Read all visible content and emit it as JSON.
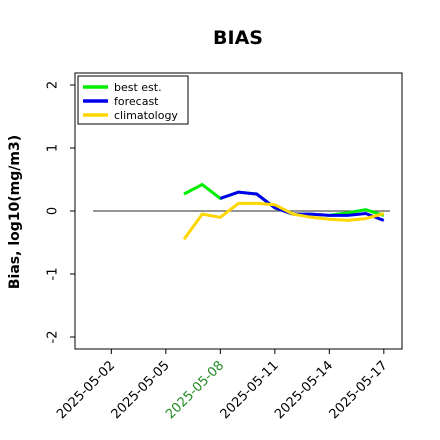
{
  "chart_data": {
    "type": "line",
    "title": "BIAS",
    "xlabel": "",
    "ylabel": "Bias, log10(mg/m3)",
    "xlim": [
      "2025-04-30",
      "2025-05-18"
    ],
    "ylim": [
      -2,
      2
    ],
    "yticks": [
      2,
      1,
      0,
      -1,
      -2
    ],
    "ytick_labels": [
      "2",
      "1",
      "0",
      "-1",
      "-2"
    ],
    "xticks": [
      "2025-05-02",
      "2025-05-05",
      "2025-05-08",
      "2025-05-11",
      "2025-05-14",
      "2025-05-17"
    ],
    "xtick_labels": [
      "2025-05-02",
      "2025-05-05",
      "2025-05-08",
      "2025-05-11",
      "2025-05-14",
      "2025-05-17"
    ],
    "highlighted_xtick": "2025-05-08",
    "highlight_color": "#228B22",
    "zero_line": 0,
    "grid": false,
    "legend_position": "top-left",
    "series": [
      {
        "name": "best est.",
        "color": "#00EE00",
        "x": [
          "2025-05-06",
          "2025-05-07",
          "2025-05-08",
          "2025-05-09",
          "2025-05-10",
          "2025-05-11",
          "2025-05-12",
          "2025-05-13",
          "2025-05-14",
          "2025-05-15",
          "2025-05-16",
          "2025-05-17"
        ],
        "y": [
          0.27,
          0.42,
          0.2,
          0.3,
          0.27,
          0.05,
          -0.05,
          -0.05,
          -0.07,
          -0.03,
          0.02,
          -0.07
        ]
      },
      {
        "name": "forecast",
        "color": "#0000EE",
        "x": [
          "2025-05-08",
          "2025-05-09",
          "2025-05-10",
          "2025-05-11",
          "2025-05-12",
          "2025-05-13",
          "2025-05-14",
          "2025-05-15",
          "2025-05-16",
          "2025-05-17"
        ],
        "y": [
          0.2,
          0.3,
          0.27,
          0.05,
          -0.05,
          -0.05,
          -0.07,
          -0.07,
          -0.04,
          -0.15
        ]
      },
      {
        "name": "climatology",
        "color": "#FFD700",
        "x": [
          "2025-05-06",
          "2025-05-07",
          "2025-05-08",
          "2025-05-09",
          "2025-05-10",
          "2025-05-11",
          "2025-05-12",
          "2025-05-13",
          "2025-05-14",
          "2025-05-15",
          "2025-05-16",
          "2025-05-17"
        ],
        "y": [
          -0.45,
          -0.05,
          -0.1,
          0.12,
          0.12,
          0.1,
          -0.05,
          -0.1,
          -0.13,
          -0.15,
          -0.12,
          -0.04
        ]
      }
    ]
  }
}
